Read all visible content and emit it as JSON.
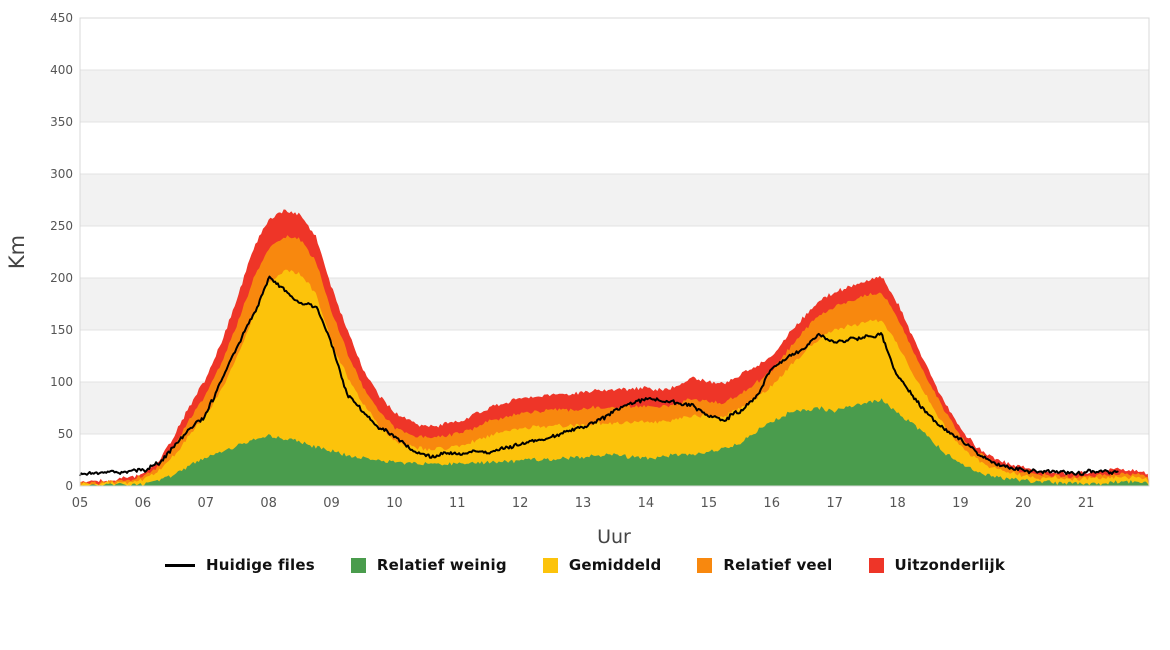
{
  "theme": {
    "background": "#ffffff",
    "stripe": "#f2f2f2",
    "grid": "#e3e3e3",
    "zero_line": "#c9c9c9",
    "plot_border": "#d8d8d8",
    "tick_text": "#555555",
    "axis_title_text": "#444444",
    "legend_text": "#111111"
  },
  "chart_data": {
    "type": "area",
    "title": "",
    "xlabel": "Uur",
    "ylabel": "Km",
    "x_start": 5,
    "x_end": 22,
    "x_step": 0.25,
    "ylim": [
      0,
      450
    ],
    "grid": "horizontal-only",
    "stripe_bands": [
      [
        50,
        100
      ],
      [
        150,
        200
      ],
      [
        250,
        300
      ],
      [
        350,
        400
      ]
    ],
    "y_ticks": [
      0,
      50,
      100,
      150,
      200,
      250,
      300,
      350,
      400,
      450
    ],
    "x_tick_hours": [
      5,
      6,
      7,
      8,
      9,
      10,
      11,
      12,
      13,
      14,
      15,
      16,
      17,
      18,
      19,
      20,
      21
    ],
    "x_tick_labels": [
      "05",
      "06",
      "07",
      "08",
      "09",
      "10",
      "11",
      "12",
      "13",
      "14",
      "15",
      "16",
      "17",
      "18",
      "19",
      "20",
      "21"
    ],
    "legend_position": "bottom",
    "series": [
      {
        "name": "Uitzonderlijk",
        "kind": "area",
        "color": "#ee3528",
        "values": [
          4,
          5,
          6,
          8,
          12,
          24,
          48,
          78,
          103,
          138,
          180,
          228,
          255,
          265,
          262,
          240,
          192,
          150,
          113,
          88,
          71,
          62,
          57,
          59,
          62,
          68,
          75,
          80,
          85,
          86,
          88,
          88,
          90,
          92,
          92,
          93,
          94,
          92,
          96,
          104,
          100,
          98,
          106,
          116,
          124,
          145,
          162,
          178,
          186,
          192,
          198,
          201,
          176,
          142,
          110,
          80,
          55,
          38,
          28,
          22,
          18,
          15,
          13,
          12,
          12,
          14,
          16,
          15,
          12
        ]
      },
      {
        "name": "Relatief veel",
        "kind": "area",
        "color": "#f8880e",
        "values": [
          3,
          3,
          4,
          6,
          9,
          19,
          39,
          65,
          88,
          118,
          155,
          198,
          228,
          240,
          237,
          216,
          168,
          128,
          95,
          72,
          57,
          49,
          46,
          48,
          50,
          55,
          62,
          66,
          70,
          72,
          73,
          73,
          74,
          76,
          76,
          77,
          77,
          76,
          79,
          84,
          81,
          80,
          89,
          99,
          111,
          130,
          148,
          164,
          172,
          178,
          184,
          186,
          162,
          130,
          100,
          72,
          48,
          33,
          24,
          18,
          14,
          12,
          10,
          9,
          9,
          11,
          12,
          11,
          9
        ]
      },
      {
        "name": "Gemiddeld",
        "kind": "area",
        "color": "#fcc30b",
        "values": [
          2,
          2,
          3,
          4,
          7,
          14,
          30,
          50,
          68,
          92,
          124,
          162,
          196,
          208,
          204,
          185,
          138,
          105,
          80,
          58,
          43,
          38,
          35,
          36,
          38,
          43,
          48,
          52,
          55,
          57,
          58,
          58,
          59,
          60,
          61,
          62,
          62,
          61,
          64,
          67,
          66,
          67,
          75,
          84,
          96,
          112,
          128,
          142,
          150,
          154,
          158,
          159,
          136,
          108,
          82,
          58,
          38,
          26,
          18,
          13,
          10,
          8,
          8,
          7,
          7,
          8,
          9,
          8,
          7
        ]
      },
      {
        "name": "Relatief weinig",
        "kind": "area",
        "color": "#4a9c4d",
        "values": [
          0,
          0,
          1,
          1,
          2,
          5,
          11,
          20,
          28,
          33,
          38,
          44,
          48,
          46,
          42,
          38,
          34,
          30,
          27,
          25,
          23,
          22,
          21,
          21,
          22,
          22,
          23,
          23,
          24,
          25,
          26,
          27,
          28,
          29,
          30,
          28,
          27,
          28,
          30,
          31,
          33,
          36,
          42,
          52,
          62,
          69,
          73,
          75,
          72,
          76,
          80,
          83,
          70,
          60,
          46,
          32,
          22,
          14,
          10,
          7,
          5,
          4,
          3,
          3,
          2,
          2,
          4,
          4,
          3
        ]
      },
      {
        "name": "Huidige files",
        "kind": "line",
        "color": "#000000",
        "values": [
          12,
          12,
          13,
          14,
          15,
          22,
          38,
          55,
          68,
          102,
          135,
          163,
          200,
          188,
          176,
          173,
          137,
          88,
          73,
          56,
          49,
          36,
          28,
          31,
          31,
          32,
          33,
          36,
          41,
          44,
          48,
          52,
          57,
          62,
          72,
          79,
          85,
          82,
          80,
          77,
          68,
          64,
          72,
          86,
          112,
          124,
          133,
          146,
          138,
          141,
          144,
          145,
          106,
          86,
          68,
          53,
          46,
          32,
          23,
          18,
          15,
          13,
          13,
          12,
          13,
          14,
          13,
          null,
          null
        ]
      }
    ]
  },
  "legend": {
    "items": [
      {
        "label": "Huidige files",
        "swatch": "line",
        "color": "#000000"
      },
      {
        "label": "Relatief weinig",
        "swatch": "square",
        "color": "#4a9c4d"
      },
      {
        "label": "Gemiddeld",
        "swatch": "square",
        "color": "#fcc30b"
      },
      {
        "label": "Relatief veel",
        "swatch": "square",
        "color": "#f8880e"
      },
      {
        "label": "Uitzonderlijk",
        "swatch": "square",
        "color": "#ee3528"
      }
    ]
  }
}
